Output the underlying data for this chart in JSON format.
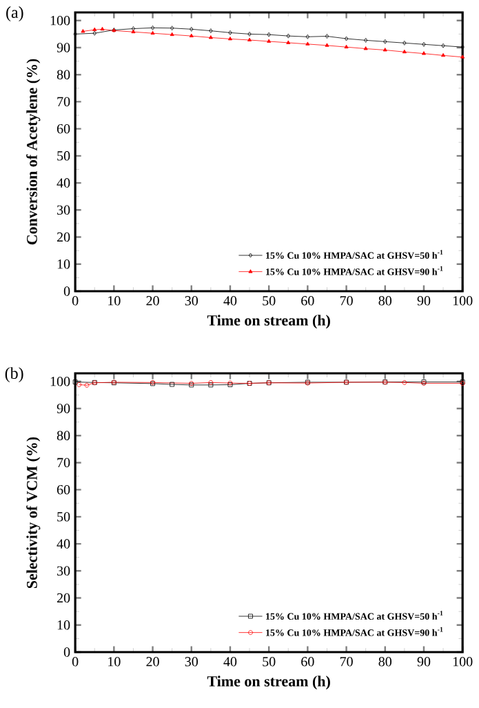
{
  "chart_data": [
    {
      "type": "line",
      "xlabel": "Time on stream (h)",
      "ylabel": "Conversion of Acetylene (%)",
      "annotations": [
        "(a)"
      ],
      "xlim": [
        0,
        100
      ],
      "ylim": [
        0,
        103
      ],
      "xticks": [
        0,
        10,
        20,
        30,
        40,
        50,
        60,
        70,
        80,
        90,
        100
      ],
      "yticks": [
        0,
        10,
        20,
        30,
        40,
        50,
        60,
        70,
        80,
        90,
        100
      ],
      "legend": "bottom right",
      "grid": false,
      "series": [
        {
          "name": "15% Cu 10% HMPA/SAC at GHSV=50 h$^{-1}$",
          "color": "#000000",
          "marker": "diamond",
          "x": [
            0,
            5,
            10,
            15,
            20,
            25,
            30,
            35,
            40,
            45,
            50,
            55,
            60,
            65,
            70,
            75,
            80,
            85,
            90,
            95,
            100
          ],
          "values": [
            95,
            95.3,
            96.5,
            97,
            97.3,
            97.2,
            96.8,
            96.2,
            95.5,
            95,
            94.8,
            94.3,
            94,
            94.2,
            93.3,
            92.7,
            92.2,
            91.7,
            91.2,
            90.7,
            90.2
          ]
        },
        {
          "name": "15% Cu 10% HMPA/SAC at GHSV=90 h$^{-1}$",
          "color": "#ff0000",
          "marker": "triangle",
          "x": [
            2,
            5,
            7,
            10,
            15,
            20,
            25,
            30,
            35,
            40,
            45,
            50,
            55,
            60,
            65,
            70,
            75,
            80,
            85,
            90,
            95,
            100
          ],
          "values": [
            96,
            96.6,
            96.8,
            96.3,
            95.8,
            95.3,
            94.8,
            94.3,
            93.7,
            93.2,
            92.8,
            92.3,
            91.8,
            91.3,
            90.8,
            90.2,
            89.6,
            89.1,
            88.4,
            87.8,
            87.1,
            86.5
          ]
        }
      ]
    },
    {
      "type": "line",
      "xlabel": "Time on stream (h)",
      "ylabel": "Selectivity of VCM (%)",
      "annotations": [
        "(b)"
      ],
      "xlim": [
        0,
        100
      ],
      "ylim": [
        0,
        103
      ],
      "xticks": [
        0,
        10,
        20,
        30,
        40,
        50,
        60,
        70,
        80,
        90,
        100
      ],
      "yticks": [
        0,
        10,
        20,
        30,
        40,
        50,
        60,
        70,
        80,
        90,
        100
      ],
      "legend": "bottom right",
      "grid": false,
      "series": [
        {
          "name": "15% Cu 10% HMPA/SAC at GHSV=50 h$^{-1}$",
          "color": "#000000",
          "marker": "square",
          "x": [
            0,
            5,
            10,
            20,
            25,
            30,
            35,
            40,
            45,
            50,
            60,
            70,
            80,
            90,
            100
          ],
          "values": [
            99.8,
            99.6,
            99.5,
            99.2,
            98.9,
            98.7,
            98.7,
            98.8,
            99.3,
            99.5,
            99.7,
            99.7,
            99.8,
            99.8,
            99.8
          ]
        },
        {
          "name": "15% Cu 10% HMPA/SAC at GHSV=90 h$^{-1}$",
          "color": "#ff0000",
          "marker": "circle",
          "x": [
            1,
            3,
            5,
            10,
            20,
            30,
            35,
            40,
            45,
            50,
            60,
            70,
            80,
            85,
            90,
            100
          ],
          "values": [
            98.8,
            98.6,
            99.5,
            99.7,
            99.6,
            99.3,
            99.6,
            99.4,
            99.3,
            99.5,
            99.4,
            99.7,
            99.7,
            99.6,
            99.3,
            99.3
          ]
        }
      ]
    }
  ]
}
